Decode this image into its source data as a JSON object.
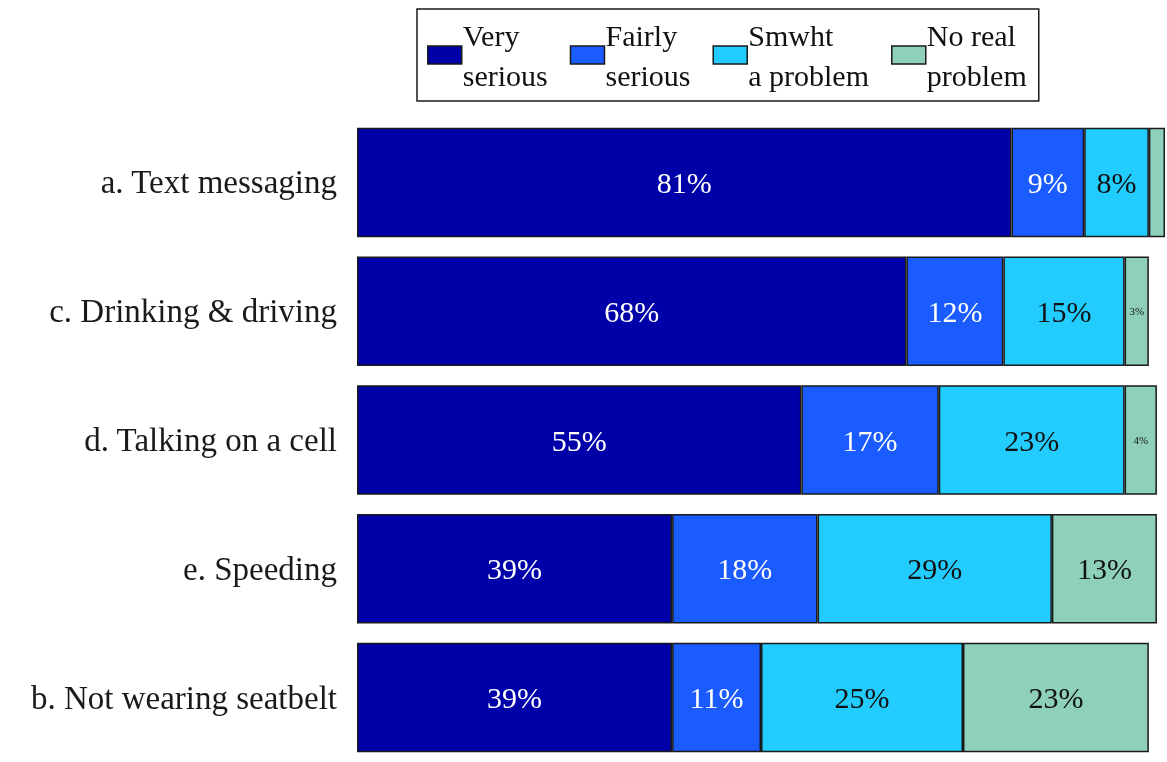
{
  "chart_data": {
    "type": "bar",
    "orientation": "horizontal",
    "stacked": true,
    "legend": "top",
    "tick_labels": "y",
    "categories": [
      "a. Text messaging",
      "c. Drinking & driving",
      "d. Talking on a cell",
      "e. Speeding",
      "b. Not wearing seatbelt"
    ],
    "series": [
      {
        "name": "Very\nserious",
        "color": "#0000a8",
        "values": [
          81,
          68,
          55,
          39,
          39
        ],
        "value_labels": [
          "81%",
          "68%",
          "55%",
          "39%",
          "39%"
        ]
      },
      {
        "name": "Fairly\nserious",
        "color": "#1a5cff",
        "values": [
          9,
          12,
          17,
          18,
          11
        ],
        "value_labels": [
          "9%",
          "12%",
          "17%",
          "18%",
          "11%"
        ]
      },
      {
        "name": "Smwht\na problem",
        "color": "#22ccff",
        "values": [
          8,
          15,
          23,
          29,
          25
        ],
        "value_labels": [
          "8%",
          "15%",
          "23%",
          "29%",
          "25%"
        ]
      },
      {
        "name": "No real\nproblem",
        "color": "#8fd0bc",
        "values": [
          2,
          3,
          4,
          13,
          23
        ],
        "value_labels": [
          null,
          "3%",
          "4%",
          "13%",
          "23%"
        ]
      }
    ]
  }
}
